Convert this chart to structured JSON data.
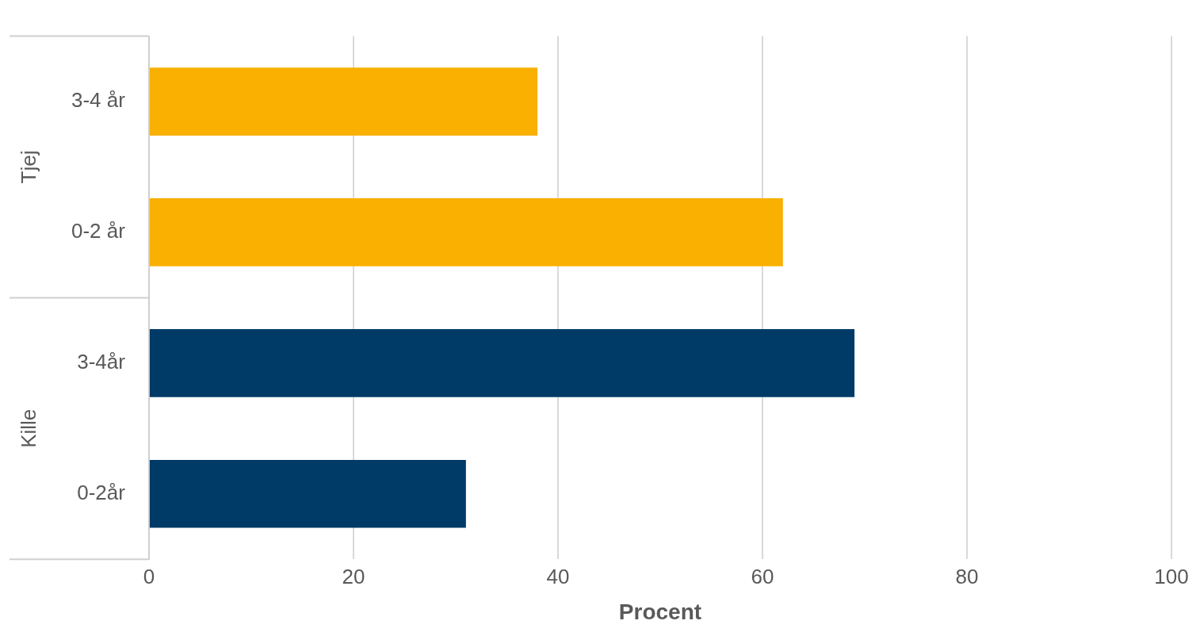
{
  "chart_data": {
    "type": "bar",
    "orientation": "horizontal",
    "xlabel": "Procent",
    "categories": [
      "3-4 år",
      "0-2 år",
      "3-4år",
      "0-2år"
    ],
    "values": [
      38,
      62,
      69,
      31
    ],
    "colors": [
      "#f9b000",
      "#f9b000",
      "#003a66",
      "#003a66"
    ],
    "annotations": [
      "Tjej",
      "Kille"
    ],
    "xlim": [
      0,
      100
    ],
    "xticks": [
      0,
      20,
      40,
      60,
      80,
      100
    ],
    "grid": "x",
    "legend": false
  }
}
